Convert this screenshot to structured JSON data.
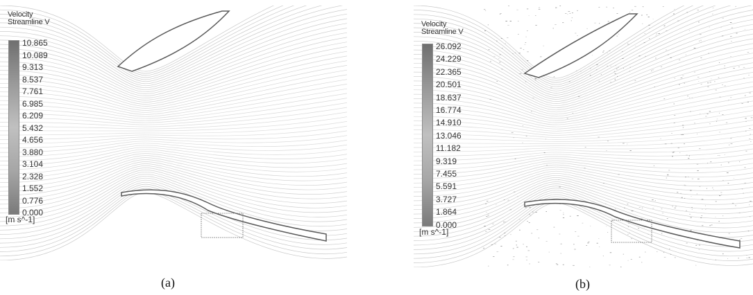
{
  "panel_a": {
    "caption": "(a)",
    "legend": {
      "title_line1": "Velocity",
      "title_line2": "Streamline V",
      "unit": "[m s^-1]",
      "ticks": [
        "10.865",
        "10.089",
        "9.313",
        "8.537",
        "7.761",
        "6.985",
        "6.209",
        "5.432",
        "4.656",
        "3.880",
        "3.104",
        "2.328",
        "1.552",
        "0.776",
        "0.000"
      ]
    }
  },
  "panel_b": {
    "caption": "(b)",
    "legend": {
      "title_line1": "Velocity",
      "title_line2": "Streamline V",
      "unit": "[m s^-1]",
      "ticks": [
        "26.092",
        "24.229",
        "22.365",
        "20.501",
        "18.637",
        "16.774",
        "14.910",
        "13.046",
        "11.182",
        "9.319",
        "7.455",
        "5.591",
        "3.727",
        "1.864",
        "0.000"
      ]
    }
  },
  "colors": {
    "streamline": "#9a9a9a",
    "wall": "#5a5a5a",
    "background": "#ffffff"
  }
}
